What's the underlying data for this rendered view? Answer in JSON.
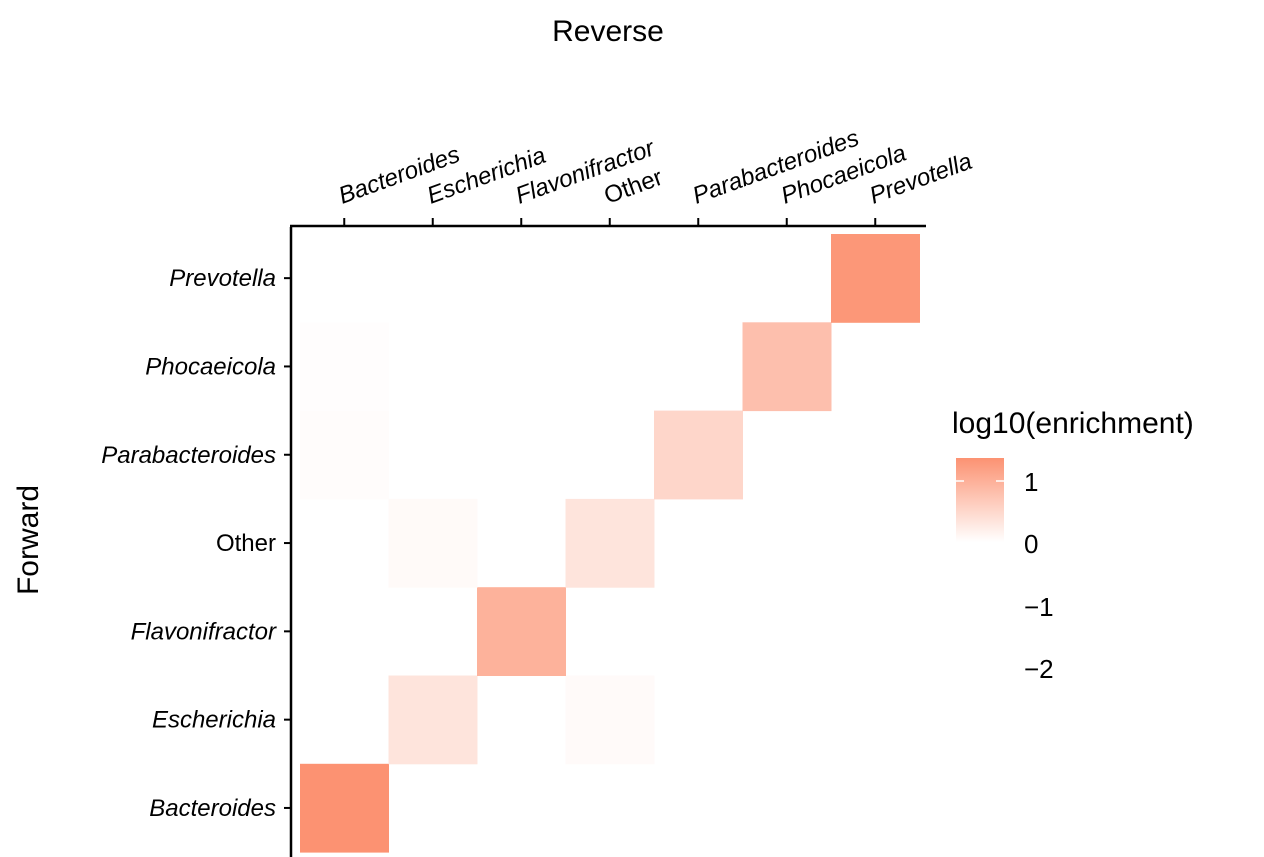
{
  "chart_data": {
    "type": "heatmap",
    "title": "",
    "xlabel": "Reverse",
    "ylabel": "Forward",
    "x_categories": [
      "Bacteroides",
      "Escherichia",
      "Flavonifractor",
      "Other",
      "Parabacteroides",
      "Phocaeicola",
      "Prevotella"
    ],
    "y_categories": [
      "Bacteroides",
      "Escherichia",
      "Flavonifractor",
      "Other",
      "Parabacteroides",
      "Phocaeicola",
      "Prevotella"
    ],
    "italic_categories": [
      "Bacteroides",
      "Escherichia",
      "Flavonifractor",
      "Parabacteroides",
      "Phocaeicola",
      "Prevotella"
    ],
    "x_axis_position": "top",
    "cells": [
      {
        "x": "Bacteroides",
        "y": "Bacteroides",
        "value": 1.2
      },
      {
        "x": "Escherichia",
        "y": "Escherichia",
        "value": 0.3
      },
      {
        "x": "Other",
        "y": "Escherichia",
        "value": 0.05
      },
      {
        "x": "Flavonifractor",
        "y": "Flavonifractor",
        "value": 0.85
      },
      {
        "x": "Escherichia",
        "y": "Other",
        "value": 0.06
      },
      {
        "x": "Other",
        "y": "Other",
        "value": 0.3
      },
      {
        "x": "Bacteroides",
        "y": "Parabacteroides",
        "value": 0.03
      },
      {
        "x": "Parabacteroides",
        "y": "Parabacteroides",
        "value": 0.45
      },
      {
        "x": "Bacteroides",
        "y": "Phocaeicola",
        "value": 0.02
      },
      {
        "x": "Phocaeicola",
        "y": "Phocaeicola",
        "value": 0.7
      },
      {
        "x": "Prevotella",
        "y": "Prevotella",
        "value": 1.15
      }
    ],
    "legend": {
      "title": "log10(enrichment)",
      "ticks": [
        "1",
        "0",
        "−1",
        "−2"
      ],
      "tick_values": [
        1,
        0,
        -1,
        -2
      ],
      "color_high": "#fc9272",
      "color_low": "#ffffff",
      "placement": "right"
    },
    "grid": false
  }
}
